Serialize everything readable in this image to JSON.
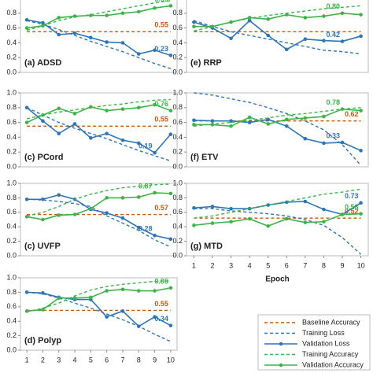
{
  "legend": [
    {
      "name": "Baseline Accuracy",
      "color": "#c55a11",
      "dash": true,
      "marker": false
    },
    {
      "name": "Training Loss",
      "color": "#2e75b6",
      "dash": true,
      "marker": false
    },
    {
      "name": "Validation Loss",
      "color": "#2e75b6",
      "dash": false,
      "marker": true
    },
    {
      "name": "Training Accuracy",
      "color": "#3cb44b",
      "dash": true,
      "marker": false
    },
    {
      "name": "Validation Accuracy",
      "color": "#3cb44b",
      "dash": false,
      "marker": true
    }
  ],
  "chart_data": [
    {
      "type": "line",
      "title": "(a) ADSD",
      "x": [
        1,
        2,
        3,
        4,
        5,
        6,
        7,
        8,
        9,
        10
      ],
      "xlim": [
        0.6,
        10.4
      ],
      "ylim": [
        0,
        1
      ],
      "yticks": [
        {
          "value": 0,
          "label": "0.0"
        },
        0.2,
        0.4,
        0.6,
        0.8
      ],
      "series": [
        {
          "values": [
            0.55,
            0.55,
            0.55,
            0.55,
            0.55,
            0.55,
            0.55,
            0.55,
            0.55,
            0.55
          ],
          "value_labels": [
            null,
            null,
            null,
            null,
            null,
            null,
            null,
            null,
            null,
            "0.55"
          ]
        },
        {
          "values": [
            0.7,
            0.65,
            0.58,
            0.5,
            0.42,
            0.35,
            0.28,
            0.2,
            0.12,
            0.05
          ]
        },
        {
          "values": [
            0.71,
            0.67,
            0.51,
            0.53,
            0.47,
            0.41,
            0.4,
            0.25,
            0.3,
            0.23
          ],
          "value_labels": [
            null,
            null,
            null,
            null,
            null,
            null,
            null,
            null,
            null,
            "0.23"
          ]
        },
        {
          "values": [
            0.57,
            0.63,
            0.7,
            0.75,
            0.78,
            0.82,
            0.86,
            0.9,
            0.94,
            0.97
          ]
        },
        {
          "values": [
            0.6,
            0.63,
            0.74,
            0.76,
            0.77,
            0.77,
            0.8,
            0.82,
            0.87,
            0.9
          ],
          "value_labels": [
            null,
            null,
            null,
            null,
            null,
            null,
            null,
            null,
            null,
            "0.90"
          ]
        }
      ]
    },
    {
      "type": "line",
      "title": "(e) RRP",
      "x": [
        1,
        2,
        3,
        4,
        5,
        6,
        7,
        8,
        9,
        10
      ],
      "xlim": [
        0.6,
        10.4
      ],
      "ylim": [
        0,
        1
      ],
      "yticks": [
        {
          "value": 0,
          "label": "0.0"
        },
        0.2,
        0.4,
        0.6,
        0.8
      ],
      "series": [
        {
          "values": [
            0.55,
            0.55,
            0.55,
            0.55,
            0.55,
            0.55,
            0.55,
            0.55,
            0.55,
            0.55
          ]
        },
        {
          "values": [
            0.7,
            0.62,
            0.55,
            0.5,
            0.45,
            0.4,
            0.35,
            0.3,
            0.28,
            0.25
          ]
        },
        {
          "values": [
            0.68,
            0.6,
            0.46,
            0.7,
            0.5,
            0.31,
            0.45,
            0.43,
            0.42,
            0.49
          ],
          "value_labels": [
            null,
            null,
            null,
            null,
            null,
            null,
            null,
            null,
            "0.42",
            null
          ]
        },
        {
          "values": [
            0.56,
            0.62,
            0.68,
            0.73,
            0.77,
            0.8,
            0.83,
            0.86,
            0.88,
            0.9
          ]
        },
        {
          "values": [
            0.62,
            0.62,
            0.68,
            0.74,
            0.72,
            0.78,
            0.74,
            0.76,
            0.8,
            0.78
          ],
          "value_labels": [
            null,
            null,
            null,
            null,
            null,
            null,
            null,
            null,
            "0.80",
            null
          ]
        }
      ]
    },
    {
      "type": "line",
      "title": "(c) PCord",
      "x": [
        1,
        2,
        3,
        4,
        5,
        6,
        7,
        8,
        9,
        10
      ],
      "xlim": [
        0.6,
        10.4
      ],
      "ylim": [
        0,
        1
      ],
      "yticks": [
        {
          "value": 0,
          "label": "0.0"
        },
        0.2,
        0.4,
        0.6,
        0.8,
        {
          "value": 1,
          "label": "1.0"
        }
      ],
      "series": [
        {
          "values": [
            0.55,
            0.55,
            0.55,
            0.55,
            0.55,
            0.55,
            0.55,
            0.55,
            0.55,
            0.55
          ],
          "value_labels": [
            null,
            null,
            null,
            null,
            null,
            null,
            null,
            null,
            null,
            "0.55"
          ]
        },
        {
          "values": [
            0.8,
            0.7,
            0.6,
            0.52,
            0.45,
            0.38,
            0.3,
            0.22,
            0.15,
            0.08
          ]
        },
        {
          "values": [
            0.8,
            0.62,
            0.45,
            0.58,
            0.39,
            0.45,
            0.36,
            0.32,
            0.19,
            0.44
          ],
          "value_labels": [
            null,
            null,
            null,
            null,
            null,
            null,
            null,
            null,
            "0.19",
            null
          ]
        },
        {
          "values": [
            0.65,
            0.7,
            0.74,
            0.77,
            0.8,
            0.83,
            0.85,
            0.88,
            0.9,
            0.91
          ]
        },
        {
          "values": [
            0.6,
            0.7,
            0.79,
            0.72,
            0.81,
            0.76,
            0.78,
            0.8,
            0.84,
            0.76
          ],
          "value_labels": [
            null,
            null,
            null,
            null,
            null,
            null,
            null,
            null,
            null,
            "0.76"
          ]
        }
      ]
    },
    {
      "type": "line",
      "title": "(f) ETV",
      "x": [
        1,
        2,
        3,
        4,
        5,
        6,
        7,
        8,
        9,
        10
      ],
      "xlim": [
        0.6,
        10.4
      ],
      "ylim": [
        0,
        1
      ],
      "yticks": [
        {
          "value": 0,
          "label": "0.0"
        },
        0.2,
        0.4,
        0.6,
        0.8,
        {
          "value": 1,
          "label": "1.0"
        }
      ],
      "series": [
        {
          "values": [
            0.62,
            0.62,
            0.62,
            0.62,
            0.62,
            0.62,
            0.62,
            0.62,
            0.62,
            0.62
          ],
          "value_labels": [
            null,
            null,
            null,
            null,
            null,
            null,
            null,
            null,
            null,
            "0.62"
          ]
        },
        {
          "values": [
            1.0,
            0.97,
            0.92,
            0.87,
            0.8,
            0.72,
            0.62,
            0.5,
            0.3,
            0.02
          ]
        },
        {
          "values": [
            0.63,
            0.62,
            0.62,
            0.6,
            0.64,
            0.55,
            0.38,
            0.32,
            0.33,
            0.22
          ],
          "value_labels": [
            null,
            null,
            null,
            null,
            null,
            null,
            null,
            null,
            "0.33",
            null
          ]
        },
        {
          "values": [
            0.55,
            0.58,
            0.6,
            0.63,
            0.66,
            0.7,
            0.72,
            0.75,
            0.78,
            0.8
          ]
        },
        {
          "values": [
            0.57,
            0.57,
            0.55,
            0.67,
            0.58,
            0.64,
            0.66,
            0.68,
            0.78,
            0.76
          ],
          "value_labels": [
            null,
            null,
            null,
            null,
            null,
            null,
            null,
            null,
            "0.78",
            null
          ]
        }
      ]
    },
    {
      "type": "line",
      "title": "(c) UVFP",
      "x": [
        1,
        2,
        3,
        4,
        5,
        6,
        7,
        8,
        9,
        10
      ],
      "xlim": [
        0.6,
        10.4
      ],
      "ylim": [
        0,
        1
      ],
      "yticks": [
        {
          "value": 0,
          "label": "0.0"
        },
        0.2,
        0.4,
        0.6,
        0.8,
        {
          "value": 1,
          "label": "1.0"
        }
      ],
      "series": [
        {
          "values": [
            0.57,
            0.57,
            0.57,
            0.57,
            0.57,
            0.57,
            0.57,
            0.57,
            0.57,
            0.57
          ],
          "value_labels": [
            null,
            null,
            null,
            null,
            null,
            null,
            null,
            null,
            null,
            "0.57"
          ]
        },
        {
          "values": [
            0.78,
            0.77,
            0.75,
            0.72,
            0.68,
            0.55,
            0.45,
            0.35,
            0.22,
            0.12
          ]
        },
        {
          "values": [
            0.78,
            0.78,
            0.84,
            0.78,
            0.64,
            0.59,
            0.52,
            0.39,
            0.28,
            0.23
          ],
          "value_labels": [
            null,
            null,
            null,
            null,
            null,
            null,
            null,
            null,
            "0.28",
            null
          ]
        },
        {
          "values": [
            0.55,
            0.6,
            0.68,
            0.78,
            0.85,
            0.9,
            0.94,
            0.96,
            0.98,
            0.99
          ]
        },
        {
          "values": [
            0.54,
            0.5,
            0.56,
            0.57,
            0.65,
            0.8,
            0.8,
            0.81,
            0.87,
            0.86
          ],
          "value_labels": [
            null,
            null,
            null,
            null,
            null,
            null,
            null,
            null,
            "0.87",
            null
          ]
        }
      ]
    },
    {
      "type": "line",
      "title": "(g) MTD",
      "x": [
        1,
        2,
        3,
        4,
        5,
        6,
        7,
        8,
        9,
        10
      ],
      "xlim": [
        0.6,
        10.4
      ],
      "ylim": [
        0,
        1
      ],
      "xticks": [
        1,
        2,
        3,
        4,
        5,
        6,
        7,
        8,
        9,
        10
      ],
      "xlabel": "Epoch",
      "yticks": [
        {
          "value": 0,
          "label": "0.0"
        },
        0.2,
        0.4,
        0.6,
        0.8,
        {
          "value": 1,
          "label": "1.0"
        }
      ],
      "series": [
        {
          "values": [
            0.52,
            0.52,
            0.52,
            0.52,
            0.52,
            0.52,
            0.52,
            0.52,
            0.52,
            0.52
          ],
          "value_labels": [
            null,
            null,
            null,
            null,
            null,
            null,
            null,
            null,
            null,
            "0.52"
          ]
        },
        {
          "values": [
            0.65,
            0.65,
            0.62,
            0.6,
            0.58,
            0.55,
            0.5,
            0.42,
            0.25,
            0.02
          ]
        },
        {
          "values": [
            0.66,
            0.68,
            0.65,
            0.65,
            0.7,
            0.74,
            0.75,
            0.64,
            0.57,
            0.73
          ],
          "value_labels": [
            null,
            null,
            null,
            null,
            null,
            null,
            null,
            null,
            null,
            "0.73"
          ]
        },
        {
          "values": [
            0.52,
            0.55,
            0.6,
            0.65,
            0.7,
            0.75,
            0.8,
            0.85,
            0.88,
            0.92
          ]
        },
        {
          "values": [
            0.42,
            0.45,
            0.47,
            0.51,
            0.41,
            0.51,
            0.46,
            0.47,
            0.57,
            0.58
          ],
          "value_labels": [
            null,
            null,
            null,
            null,
            null,
            null,
            null,
            null,
            null,
            "0.58"
          ]
        }
      ]
    },
    {
      "type": "line",
      "title": "(d) Polyp",
      "x": [
        1,
        2,
        3,
        4,
        5,
        6,
        7,
        8,
        9,
        10
      ],
      "xlim": [
        0.6,
        10.4
      ],
      "ylim": [
        0,
        1
      ],
      "xticks": [
        1,
        2,
        3,
        4,
        5,
        6,
        7,
        8,
        9,
        10
      ],
      "yticks": [
        {
          "value": 0,
          "label": "0.0"
        },
        0.2,
        0.4,
        0.6,
        0.8,
        {
          "value": 1,
          "label": "1.0"
        }
      ],
      "series": [
        {
          "values": [
            0.55,
            0.55,
            0.55,
            0.55,
            0.55,
            0.55,
            0.55,
            0.55,
            0.55,
            0.55
          ],
          "value_labels": [
            null,
            null,
            null,
            null,
            null,
            null,
            null,
            null,
            null,
            "0.55"
          ]
        },
        {
          "values": [
            0.8,
            0.78,
            0.72,
            0.65,
            0.58,
            0.5,
            0.42,
            0.33,
            0.22,
            0.12
          ]
        },
        {
          "values": [
            0.8,
            0.79,
            0.73,
            0.7,
            0.7,
            0.46,
            0.54,
            0.33,
            0.46,
            0.34
          ],
          "value_labels": [
            null,
            null,
            null,
            null,
            null,
            null,
            null,
            null,
            null,
            "0.34"
          ]
        },
        {
          "values": [
            0.53,
            0.58,
            0.65,
            0.75,
            0.83,
            0.88,
            0.91,
            0.93,
            0.95,
            0.96
          ]
        },
        {
          "values": [
            0.54,
            0.56,
            0.72,
            0.72,
            0.73,
            0.82,
            0.84,
            0.82,
            0.82,
            0.86
          ],
          "value_labels": [
            null,
            null,
            null,
            null,
            null,
            null,
            null,
            null,
            null,
            "0.86"
          ]
        }
      ]
    }
  ]
}
